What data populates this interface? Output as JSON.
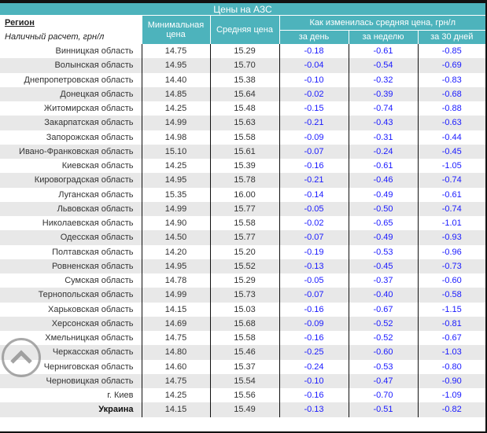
{
  "title": "Цены на АЗС",
  "header": {
    "region": "Регион",
    "region_sub": "Наличный расчет, грн/л",
    "min_price": "Минимальная цена",
    "avg_price": "Средняя цена",
    "change_group": "Как изменилась средняя цена, грн/л",
    "day": "за день",
    "week": "за неделю",
    "month": "за 30 дней"
  },
  "rows": [
    [
      "Винницкая область",
      "14.75",
      "15.29",
      "-0.18",
      "-0.61",
      "-0.85"
    ],
    [
      "Волынская область",
      "14.95",
      "15.70",
      "-0.04",
      "-0.54",
      "-0.69"
    ],
    [
      "Днепропетровская область",
      "14.40",
      "15.38",
      "-0.10",
      "-0.32",
      "-0.83"
    ],
    [
      "Донецкая область",
      "14.85",
      "15.64",
      "-0.02",
      "-0.39",
      "-0.68"
    ],
    [
      "Житомирская область",
      "14.25",
      "15.48",
      "-0.15",
      "-0.74",
      "-0.88"
    ],
    [
      "Закарпатская область",
      "14.99",
      "15.63",
      "-0.21",
      "-0.43",
      "-0.63"
    ],
    [
      "Запорожская область",
      "14.98",
      "15.58",
      "-0.09",
      "-0.31",
      "-0.44"
    ],
    [
      "Ивано-Франковская область",
      "15.10",
      "15.61",
      "-0.07",
      "-0.24",
      "-0.45"
    ],
    [
      "Киевская область",
      "14.25",
      "15.39",
      "-0.16",
      "-0.61",
      "-1.05"
    ],
    [
      "Кировоградская область",
      "14.95",
      "15.78",
      "-0.21",
      "-0.46",
      "-0.74"
    ],
    [
      "Луганская область",
      "15.35",
      "16.00",
      "-0.14",
      "-0.49",
      "-0.61"
    ],
    [
      "Львовская область",
      "14.99",
      "15.77",
      "-0.05",
      "-0.50",
      "-0.74"
    ],
    [
      "Николаевская область",
      "14.90",
      "15.58",
      "-0.02",
      "-0.65",
      "-1.01"
    ],
    [
      "Одесская область",
      "14.50",
      "15.77",
      "-0.07",
      "-0.49",
      "-0.93"
    ],
    [
      "Полтавская область",
      "14.20",
      "15.20",
      "-0.19",
      "-0.53",
      "-0.96"
    ],
    [
      "Ровненская область",
      "14.95",
      "15.52",
      "-0.13",
      "-0.45",
      "-0.73"
    ],
    [
      "Сумская область",
      "14.78",
      "15.29",
      "-0.05",
      "-0.37",
      "-0.60"
    ],
    [
      "Тернопольская область",
      "14.99",
      "15.73",
      "-0.07",
      "-0.40",
      "-0.58"
    ],
    [
      "Харьковская область",
      "14.15",
      "15.03",
      "-0.16",
      "-0.67",
      "-1.15"
    ],
    [
      "Херсонская область",
      "14.69",
      "15.68",
      "-0.09",
      "-0.52",
      "-0.81"
    ],
    [
      "Хмельницкая область",
      "14.75",
      "15.58",
      "-0.16",
      "-0.52",
      "-0.67"
    ],
    [
      "Черкасская область",
      "14.80",
      "15.46",
      "-0.25",
      "-0.60",
      "-1.03"
    ],
    [
      "Черниговская область",
      "14.60",
      "15.37",
      "-0.24",
      "-0.53",
      "-0.80"
    ],
    [
      "Черновицкая область",
      "14.75",
      "15.54",
      "-0.10",
      "-0.47",
      "-0.90"
    ],
    [
      "г. Киев",
      "14.25",
      "15.56",
      "-0.16",
      "-0.70",
      "-1.09"
    ],
    [
      "Украина",
      "14.15",
      "15.49",
      "-0.13",
      "-0.51",
      "-0.82"
    ]
  ],
  "colors": {
    "header": "#4db3bc",
    "change": "#1a1aff",
    "stripe": "#e8e8e8"
  }
}
